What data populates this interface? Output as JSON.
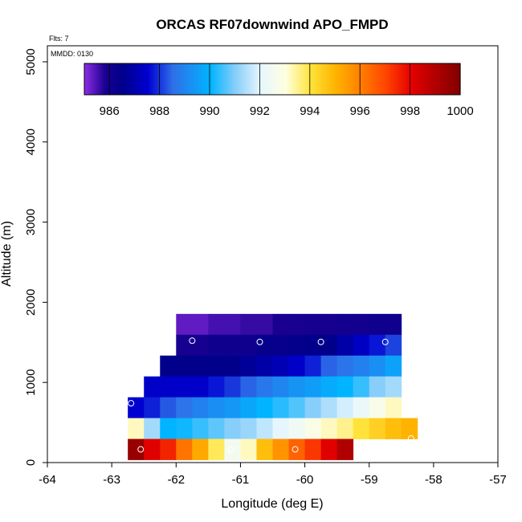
{
  "chart_data": {
    "type": "heatmap",
    "title": "ORCAS RF07downwind APO_FMPD",
    "xlabel": "Longitude (deg E)",
    "ylabel": "Altitude (m)",
    "xlim": [
      -64,
      -57
    ],
    "ylim": [
      0,
      5200
    ],
    "xticks": [
      -64,
      -63,
      -62,
      -61,
      -60,
      -59,
      -58,
      -57
    ],
    "yticks": [
      0,
      1000,
      2000,
      3000,
      4000,
      5000
    ],
    "xtick_labels": [
      "-64",
      "-63",
      "-62",
      "-61",
      "-60",
      "-59",
      "-58",
      "-57"
    ],
    "ytick_labels": [
      "0",
      "1000",
      "2000",
      "3000",
      "4000",
      "5000"
    ],
    "annotations": {
      "flts": "Flts: 7",
      "mmdd": "MMDD: 0130"
    },
    "colorbar": {
      "range": [
        985,
        1000
      ],
      "ticks": [
        986,
        988,
        990,
        992,
        994,
        996,
        998,
        1000
      ],
      "tick_labels": [
        "986",
        "988",
        "990",
        "992",
        "994",
        "996",
        "998",
        "1000"
      ],
      "stops": [
        {
          "v": 985,
          "c": "#8a2be2"
        },
        {
          "v": 985.8,
          "c": "#1a0090"
        },
        {
          "v": 986.5,
          "c": "#00008b"
        },
        {
          "v": 987.5,
          "c": "#0000d0"
        },
        {
          "v": 988.5,
          "c": "#2f6fe8"
        },
        {
          "v": 990,
          "c": "#00b4ff"
        },
        {
          "v": 991,
          "c": "#87cefa"
        },
        {
          "v": 992,
          "c": "#e6f6ff"
        },
        {
          "v": 993,
          "c": "#ffffe0"
        },
        {
          "v": 994,
          "c": "#ffe33a"
        },
        {
          "v": 995,
          "c": "#ffb300"
        },
        {
          "v": 996,
          "c": "#ff7f00"
        },
        {
          "v": 997,
          "c": "#ff4500"
        },
        {
          "v": 998,
          "c": "#e60000"
        },
        {
          "v": 999,
          "c": "#b00000"
        },
        {
          "v": 1000,
          "c": "#800000"
        }
      ]
    },
    "cell_width_deg": 0.25,
    "cell_height_m": 260,
    "rows": [
      {
        "alt": 1725,
        "x0": -62.0,
        "values": [
          985.3,
          985.3,
          985.5,
          985.5,
          985.6,
          985.6,
          985.8,
          985.8,
          985.9,
          985.9,
          986.0,
          986.0,
          986.1,
          986.1
        ]
      },
      {
        "alt": 1465,
        "x0": -62.0,
        "values": [
          985.9,
          985.9,
          986.1,
          986.1,
          986.1,
          986.3,
          986.3,
          986.4,
          986.5,
          986.5,
          986.9,
          987.3,
          987.7,
          988.1
        ]
      },
      {
        "alt": 1205,
        "x0": -62.25,
        "values": [
          986.5,
          986.5,
          986.5,
          986.5,
          986.5,
          986.7,
          986.9,
          987.1,
          987.4,
          987.8,
          988.4,
          988.6,
          988.9,
          989.2,
          989.6
        ]
      },
      {
        "alt": 945,
        "x0": -62.5,
        "values": [
          987.4,
          987.4,
          987.4,
          987.4,
          987.7,
          988.0,
          988.4,
          988.7,
          989.0,
          989.3,
          989.5,
          989.8,
          990.0,
          990.4,
          991.0,
          991.3
        ]
      },
      {
        "alt": 685,
        "x0": -62.75,
        "values": [
          987.5,
          987.8,
          988.3,
          988.6,
          988.9,
          989.2,
          989.4,
          989.7,
          990.0,
          990.3,
          990.6,
          991.0,
          991.4,
          991.8,
          992.2,
          992.7,
          993.2
        ]
      },
      {
        "alt": 425,
        "x0": -62.75,
        "values": [
          993.2,
          991.3,
          990.0,
          990.1,
          990.4,
          990.7,
          991.0,
          991.2,
          991.6,
          992.0,
          992.4,
          992.8,
          993.2,
          993.5,
          994.0,
          994.4,
          994.8,
          995.0
        ]
      },
      {
        "alt": 165,
        "x0": -62.75,
        "values": [
          999.5,
          998.1,
          997.5,
          996.2,
          995.2,
          993.8,
          992.5,
          993.2,
          994.8,
          995.6,
          996.5,
          997.2,
          998.1,
          999.0
        ]
      }
    ],
    "points": [
      {
        "x": -62.55,
        "y": 165
      },
      {
        "x": -62.7,
        "y": 740
      },
      {
        "x": -61.75,
        "y": 1520
      },
      {
        "x": -61.15,
        "y": 160
      },
      {
        "x": -60.7,
        "y": 1505
      },
      {
        "x": -60.15,
        "y": 165
      },
      {
        "x": -59.75,
        "y": 1505
      },
      {
        "x": -59.15,
        "y": 165
      },
      {
        "x": -58.75,
        "y": 1505
      },
      {
        "x": -58.35,
        "y": 300
      }
    ]
  }
}
